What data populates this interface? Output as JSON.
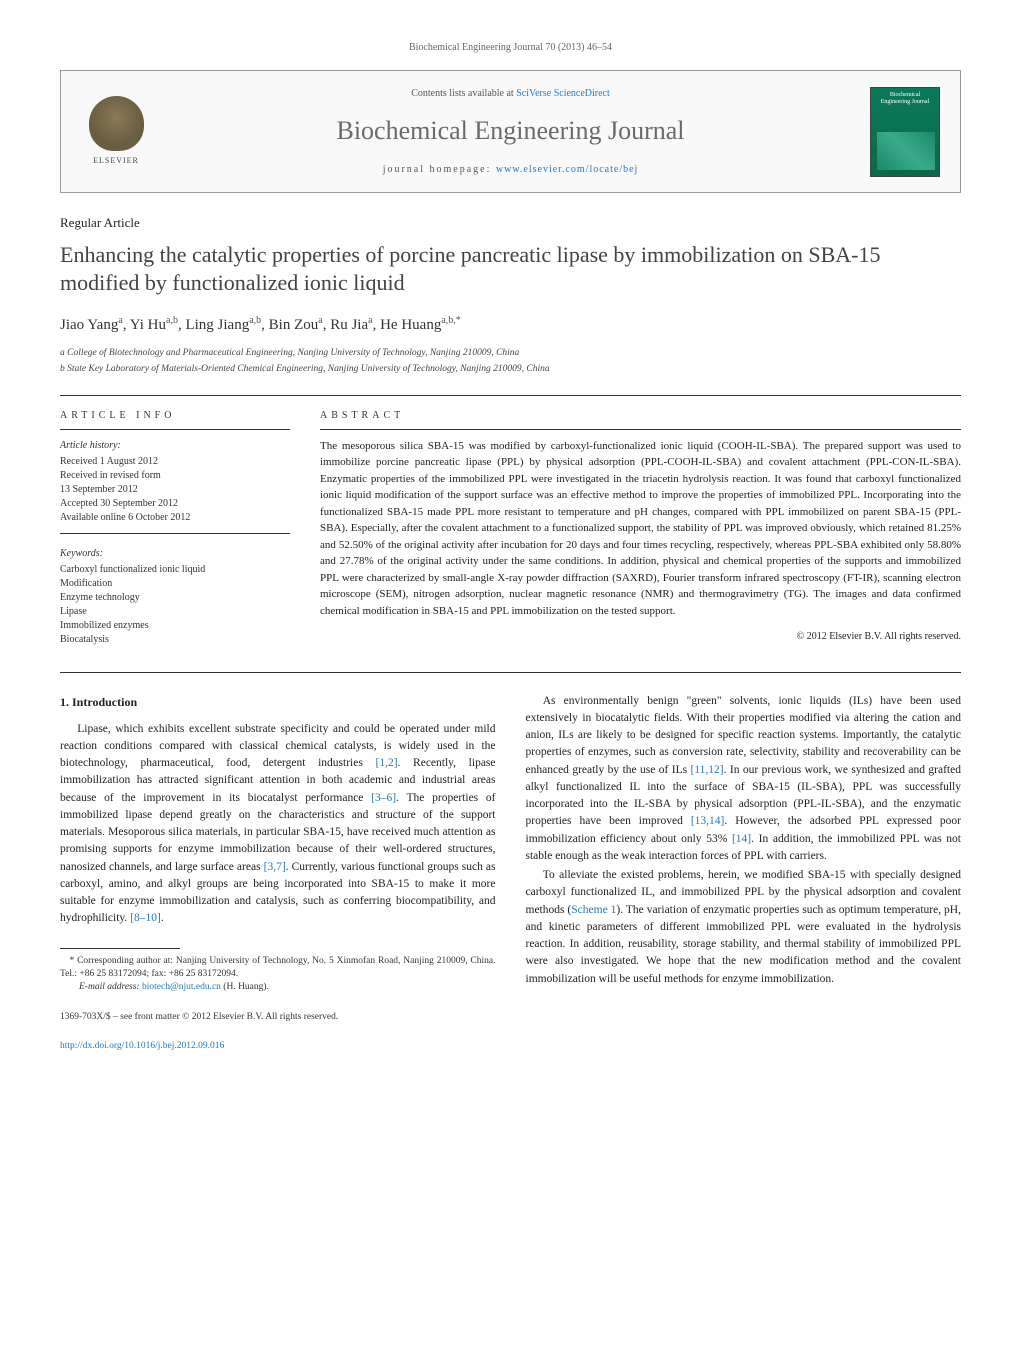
{
  "journal_header_citation": "Biochemical Engineering Journal 70 (2013) 46–54",
  "header": {
    "elsevier_label": "ELSEVIER",
    "contents_line_prefix": "Contents lists available at ",
    "contents_line_link": "SciVerse ScienceDirect",
    "journal_title": "Biochemical Engineering Journal",
    "homepage_prefix": "journal homepage: ",
    "homepage_link": "www.elsevier.com/locate/bej",
    "cover_title": "Biochemical Engineering Journal"
  },
  "article_type": "Regular Article",
  "paper_title": "Enhancing the catalytic properties of porcine pancreatic lipase by immobilization on SBA-15 modified by functionalized ionic liquid",
  "authors_html": "Jiao Yang<sup>a</sup>, Yi Hu<sup>a,b</sup>, Ling Jiang<sup>a,b</sup>, Bin Zou<sup>a</sup>, Ru Jia<sup>a</sup>, He Huang<sup>a,b,*</sup>",
  "affiliations": [
    "a  College of Biotechnology and Pharmaceutical Engineering, Nanjing University of Technology, Nanjing 210009, China",
    "b  State Key Laboratory of Materials-Oriented Chemical Engineering, Nanjing University of Technology, Nanjing 210009, China"
  ],
  "article_info": {
    "heading": "ARTICLE INFO",
    "history_label": "Article history:",
    "history": [
      "Received 1 August 2012",
      "Received in revised form",
      "13 September 2012",
      "Accepted 30 September 2012",
      "Available online 6 October 2012"
    ],
    "keywords_label": "Keywords:",
    "keywords": [
      "Carboxyl functionalized ionic liquid",
      "Modification",
      "Enzyme technology",
      "Lipase",
      "Immobilized enzymes",
      "Biocatalysis"
    ]
  },
  "abstract": {
    "heading": "ABSTRACT",
    "text": "The mesoporous silica SBA-15 was modified by carboxyl-functionalized ionic liquid (COOH-IL-SBA). The prepared support was used to immobilize porcine pancreatic lipase (PPL) by physical adsorption (PPL-COOH-IL-SBA) and covalent attachment (PPL-CON-IL-SBA). Enzymatic properties of the immobilized PPL were investigated in the triacetin hydrolysis reaction. It was found that carboxyl functionalized ionic liquid modification of the support surface was an effective method to improve the properties of immobilized PPL. Incorporating into the functionalized SBA-15 made PPL more resistant to temperature and pH changes, compared with PPL immobilized on parent SBA-15 (PPL-SBA). Especially, after the covalent attachment to a functionalized support, the stability of PPL was improved obviously, which retained 81.25% and 52.50% of the original activity after incubation for 20 days and four times recycling, respectively, whereas PPL-SBA exhibited only 58.80% and 27.78% of the original activity under the same conditions. In addition, physical and chemical properties of the supports and immobilized PPL were characterized by small-angle X-ray powder diffraction (SAXRD), Fourier transform infrared spectroscopy (FT-IR), scanning electron microscope (SEM), nitrogen adsorption, nuclear magnetic resonance (NMR) and thermogravimetry (TG). The images and data confirmed chemical modification in SBA-15 and PPL immobilization on the tested support.",
    "copyright": "© 2012 Elsevier B.V. All rights reserved."
  },
  "intro": {
    "heading": "1. Introduction",
    "p1_a": "Lipase, which exhibits excellent substrate specificity and could be operated under mild reaction conditions compared with classical chemical catalysts, is widely used in the biotechnology, pharmaceutical, food, detergent industries ",
    "p1_ref1": "[1,2]",
    "p1_b": ". Recently, lipase immobilization has attracted significant attention in both academic and industrial areas because of the improvement in its biocatalyst performance ",
    "p1_ref2": "[3–6]",
    "p1_c": ". The properties of immobilized lipase depend greatly on the characteristics and structure of the support materials. Mesoporous silica materials, in particular SBA-15, have received much attention as promising supports for enzyme immobilization because of their well-ordered structures, nanosized channels, and large surface areas ",
    "p1_ref3": "[3,7]",
    "p1_d": ". Currently, various functional groups such as carboxyl, amino, and alkyl groups are being incorporated into SBA-15 to make it more suitable for enzyme immobilization and catalysis, such as conferring biocompatibility, and hydrophilicity. ",
    "p1_ref4": "[8–10]",
    "p1_e": ".",
    "p2_a": "As environmentally benign \"green\" solvents, ionic liquids (ILs) have been used extensively in biocatalytic fields. With their properties modified via altering the cation and anion, ILs are likely to be designed for specific reaction systems. Importantly, the catalytic properties of enzymes, such as conversion rate, selectivity, stability and recoverability can be enhanced greatly by the use of ILs ",
    "p2_ref1": "[11,12]",
    "p2_b": ". In our previous work, we synthesized and grafted alkyl functionalized IL into the surface of SBA-15 (IL-SBA), PPL was successfully incorporated into the IL-SBA by physical adsorption (PPL-IL-SBA), and the enzymatic properties have been improved ",
    "p2_ref2": "[13,14]",
    "p2_c": ". However, the adsorbed PPL expressed poor immobilization efficiency about only 53% ",
    "p2_ref3": "[14]",
    "p2_d": ". In addition, the immobilized PPL was not stable enough as the weak interaction forces of PPL with carriers.",
    "p3_a": "To alleviate the existed problems, herein, we modified SBA-15 with specially designed carboxyl functionalized IL, and immobilized PPL by the physical adsorption and covalent methods (",
    "p3_ref1": "Scheme 1",
    "p3_b": "). The variation of enzymatic properties such as optimum temperature, pH, and kinetic parameters of different immobilized PPL were evaluated in the hydrolysis reaction. In addition, reusability, storage stability, and thermal stability of immobilized PPL were also investigated. We hope that the new modification method and the covalent immobilization will be useful methods for enzyme immobilization."
  },
  "footnote": {
    "corr_text": "* Corresponding author at: Nanjing University of Technology, No. 5 Xinmofan Road, Nanjing 210009, China. Tel.: +86 25 83172094; fax: +86 25 83172094.",
    "email_label": "E-mail address: ",
    "email": "biotech@njut.edu.cn",
    "email_suffix": " (H. Huang)."
  },
  "footer": {
    "line1": "1369-703X/$ – see front matter © 2012 Elsevier B.V. All rights reserved.",
    "doi": "http://dx.doi.org/10.1016/j.bej.2012.09.016"
  },
  "colors": {
    "link": "#2878b8",
    "text": "#222222",
    "muted": "#666666",
    "rule": "#333333"
  },
  "typography": {
    "body_fontsize_pt": 11.5,
    "title_fontsize_pt": 22,
    "journal_title_fontsize_pt": 26,
    "abstract_fontsize_pt": 11,
    "info_fontsize_pt": 10
  }
}
